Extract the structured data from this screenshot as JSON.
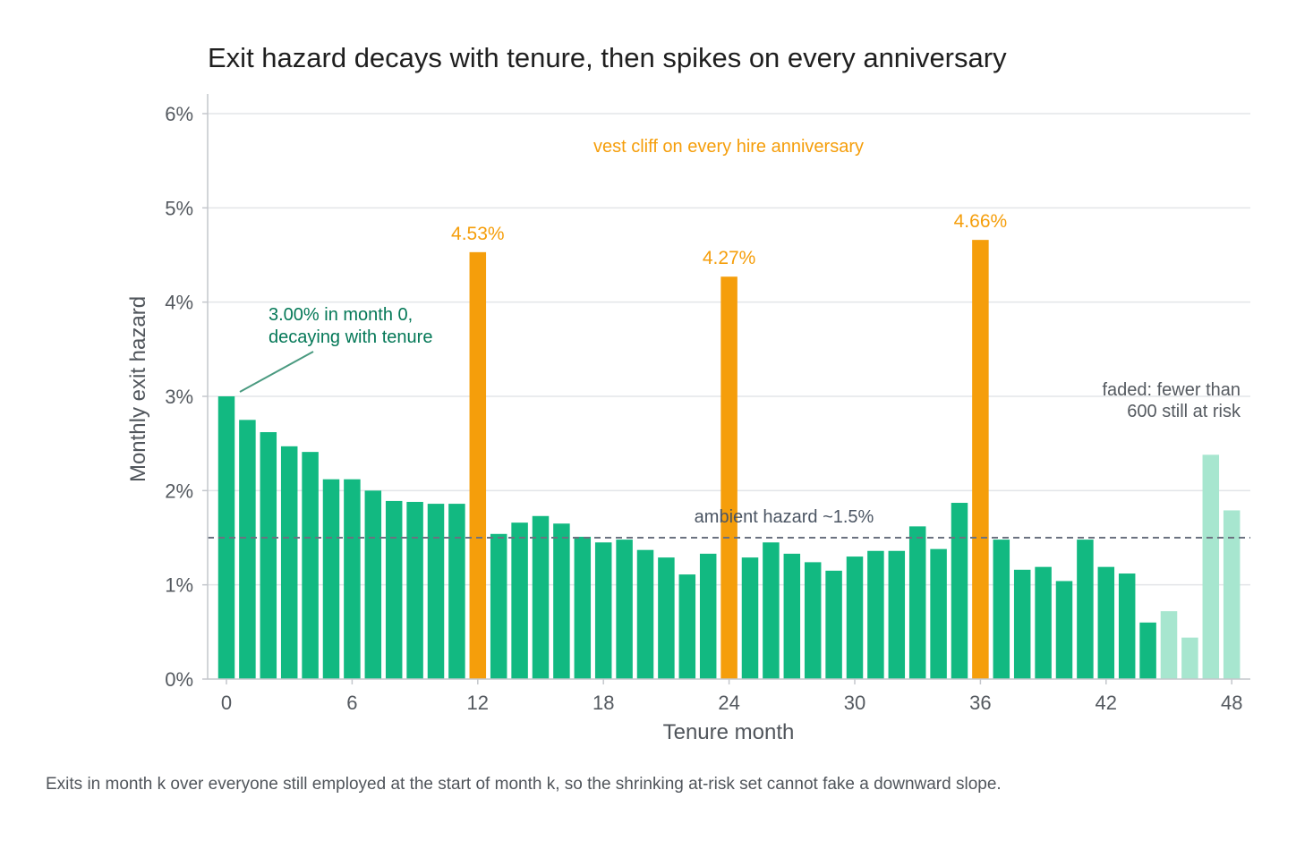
{
  "chart_data": {
    "type": "bar",
    "title": "Exit hazard decays with tenure, then spikes on every anniversary",
    "xlabel": "Tenure month",
    "ylabel": "Monthly exit hazard",
    "ylim": [
      0,
      6
    ],
    "y_ticks": [
      "0%",
      "1%",
      "2%",
      "3%",
      "4%",
      "5%",
      "6%"
    ],
    "x_ticks": [
      "0",
      "6",
      "12",
      "18",
      "24",
      "30",
      "36",
      "42",
      "48"
    ],
    "x": [
      0,
      1,
      2,
      3,
      4,
      5,
      6,
      7,
      8,
      9,
      10,
      11,
      12,
      13,
      14,
      15,
      16,
      17,
      18,
      19,
      20,
      21,
      22,
      23,
      24,
      25,
      26,
      27,
      28,
      29,
      30,
      31,
      32,
      33,
      34,
      35,
      36,
      37,
      38,
      39,
      40,
      41,
      42,
      43,
      44,
      45,
      46,
      47,
      48
    ],
    "values": [
      3.0,
      2.75,
      2.62,
      2.47,
      2.41,
      2.12,
      2.12,
      2.0,
      1.89,
      1.88,
      1.86,
      1.86,
      4.53,
      1.54,
      1.66,
      1.73,
      1.65,
      1.51,
      1.45,
      1.48,
      1.37,
      1.29,
      1.11,
      1.33,
      4.27,
      1.29,
      1.45,
      1.33,
      1.24,
      1.15,
      1.3,
      1.36,
      1.36,
      1.62,
      1.38,
      1.87,
      4.66,
      1.48,
      1.16,
      1.19,
      1.04,
      1.48,
      1.19,
      1.12,
      0.6,
      0.72,
      0.44,
      2.38,
      1.79
    ],
    "anniversary_months": [
      12,
      24,
      36
    ],
    "faded_from_month": 45,
    "reference_line": {
      "value": 1.5,
      "label": "ambient hazard ~1.5%"
    },
    "data_labels": [
      {
        "x": 12,
        "text": "4.53%"
      },
      {
        "x": 24,
        "text": "4.27%"
      },
      {
        "x": 36,
        "text": "4.66%"
      }
    ],
    "annotations": {
      "cliff": "vest cliff on every hire anniversary",
      "start_line1": "3.00% in month 0,",
      "start_line2": "decaying with tenure",
      "faded_line1": "faded: fewer than",
      "faded_line2": "600 still at risk"
    },
    "colors": {
      "bar": "#12b981",
      "anniversary": "#f59e0b",
      "faded": "#a7e6cf",
      "reference": "#6b7280",
      "start_note": "#047857"
    },
    "grid": true
  },
  "caption": "Exits in month k over everyone still employed at the start of month k, so the shrinking at-risk set cannot fake a downward slope."
}
